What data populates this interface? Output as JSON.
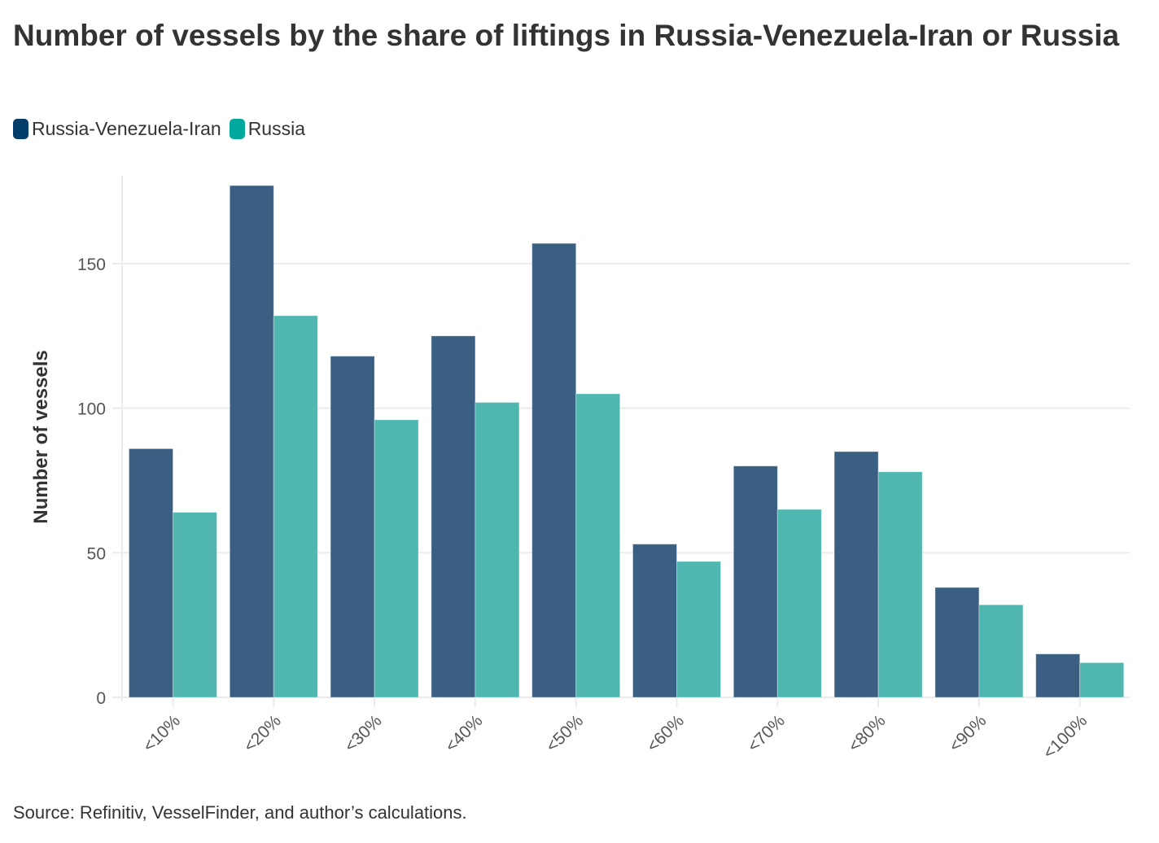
{
  "chart_data": {
    "type": "bar",
    "title": "Number of vessels by the share of liftings in Russia-Venezuela-Iran or Russia",
    "xlabel": "",
    "ylabel": "Number of vessels",
    "ylim": [
      0,
      180
    ],
    "yticks": [
      0,
      50,
      100,
      150
    ],
    "grid": true,
    "legend_position": "top-left",
    "categories": [
      "<10%",
      "<20%",
      "<30%",
      "<40%",
      "<50%",
      "<60%",
      "<70%",
      "<80%",
      "<90%",
      "<100%"
    ],
    "series": [
      {
        "name": "Russia-Venezuela-Iran",
        "color": "#033e6b",
        "bar_color": "#3a5f82",
        "values": [
          86,
          177,
          118,
          125,
          157,
          53,
          80,
          85,
          38,
          15
        ]
      },
      {
        "name": "Russia",
        "color": "#00a89d",
        "bar_color": "#50b7b0",
        "values": [
          64,
          132,
          96,
          102,
          105,
          47,
          65,
          78,
          32,
          12
        ]
      }
    ],
    "source": "Source: Refinitiv, VesselFinder, and author’s calculations."
  }
}
